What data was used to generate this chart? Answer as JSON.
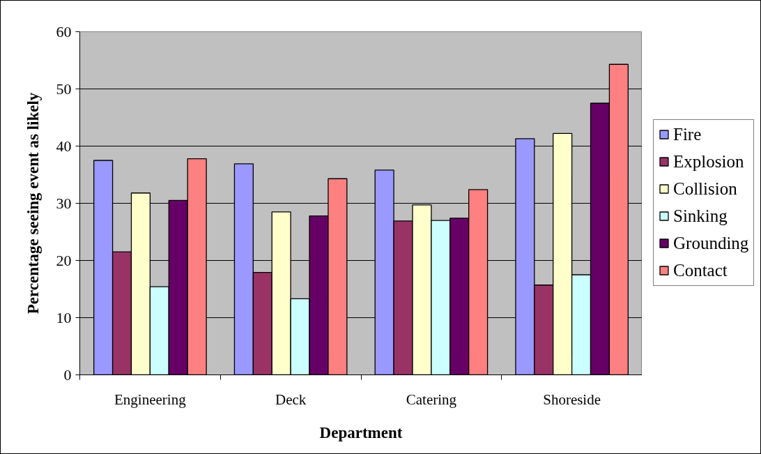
{
  "chart_data": {
    "type": "bar",
    "xlabel": "Department",
    "ylabel": "Percentage seeing event as likely",
    "categories": [
      "Engineering",
      "Deck",
      "Catering",
      "Shoreside"
    ],
    "series": [
      {
        "name": "Fire",
        "color": "#9999ff",
        "values": [
          37.5,
          36.9,
          35.8,
          41.3
        ]
      },
      {
        "name": "Explosion",
        "color": "#993366",
        "values": [
          21.5,
          17.9,
          26.9,
          15.7
        ]
      },
      {
        "name": "Collision",
        "color": "#ffffcc",
        "values": [
          31.8,
          28.5,
          29.7,
          42.2
        ]
      },
      {
        "name": "Sinking",
        "color": "#ccffff",
        "values": [
          15.4,
          13.3,
          27.0,
          17.5
        ]
      },
      {
        "name": "Grounding",
        "color": "#660066",
        "values": [
          30.5,
          27.8,
          27.4,
          47.5
        ]
      },
      {
        "name": "Contact",
        "color": "#ff8080",
        "values": [
          37.8,
          34.3,
          32.4,
          54.3
        ]
      }
    ],
    "ylim": [
      0,
      60
    ],
    "yticks": [
      0,
      10,
      20,
      30,
      40,
      50,
      60
    ],
    "grid": "y",
    "legend": "right"
  }
}
